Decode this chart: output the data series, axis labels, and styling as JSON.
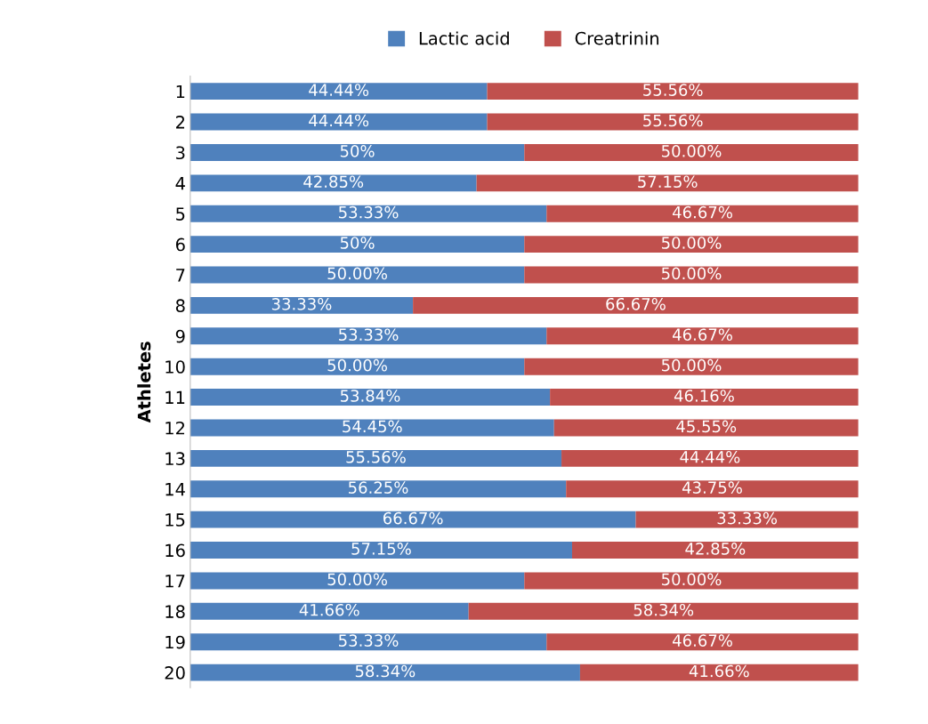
{
  "chart_data": {
    "type": "bar",
    "orientation": "horizontal",
    "stacked": true,
    "ylabel": "Athletes",
    "categories": [
      "1",
      "2",
      "3",
      "4",
      "5",
      "6",
      "7",
      "8",
      "9",
      "10",
      "11",
      "12",
      "13",
      "14",
      "15",
      "16",
      "17",
      "18",
      "19",
      "20"
    ],
    "xlim": [
      0,
      100
    ],
    "tick_labels": "y",
    "legend": "top",
    "grid": false,
    "series": [
      {
        "name": "Lactic acid",
        "color": "#4f81bd",
        "values": [
          44.44,
          44.44,
          50,
          42.85,
          53.33,
          50,
          50.0,
          33.33,
          53.33,
          50.0,
          53.84,
          54.45,
          55.56,
          56.25,
          66.67,
          57.15,
          50.0,
          41.66,
          53.33,
          58.34
        ],
        "value_labels": [
          "44.44%",
          "44.44%",
          "50%",
          "42.85%",
          "53.33%",
          "50%",
          "50.00%",
          "33.33%",
          "53.33%",
          "50.00%",
          "53.84%",
          "54.45%",
          "55.56%",
          "56.25%",
          "66.67%",
          "57.15%",
          "50.00%",
          "41.66%",
          "53.33%",
          "58.34%"
        ]
      },
      {
        "name": "Creatrinin",
        "color": "#c0504d",
        "values": [
          55.56,
          55.56,
          50.0,
          57.15,
          46.67,
          50.0,
          50.0,
          66.67,
          46.67,
          50.0,
          46.16,
          45.55,
          44.44,
          43.75,
          33.33,
          42.85,
          50.0,
          58.34,
          46.67,
          41.66
        ],
        "value_labels": [
          "55.56%",
          "55.56%",
          "50.00%",
          "57.15%",
          "46.67%",
          "50.00%",
          "50.00%",
          "66.67%",
          "46.67%",
          "50.00%",
          "46.16%",
          "45.55%",
          "44.44%",
          "43.75%",
          "33.33%",
          "42.85%",
          "50.00%",
          "58.34%",
          "46.67%",
          "41.66%"
        ]
      }
    ]
  }
}
